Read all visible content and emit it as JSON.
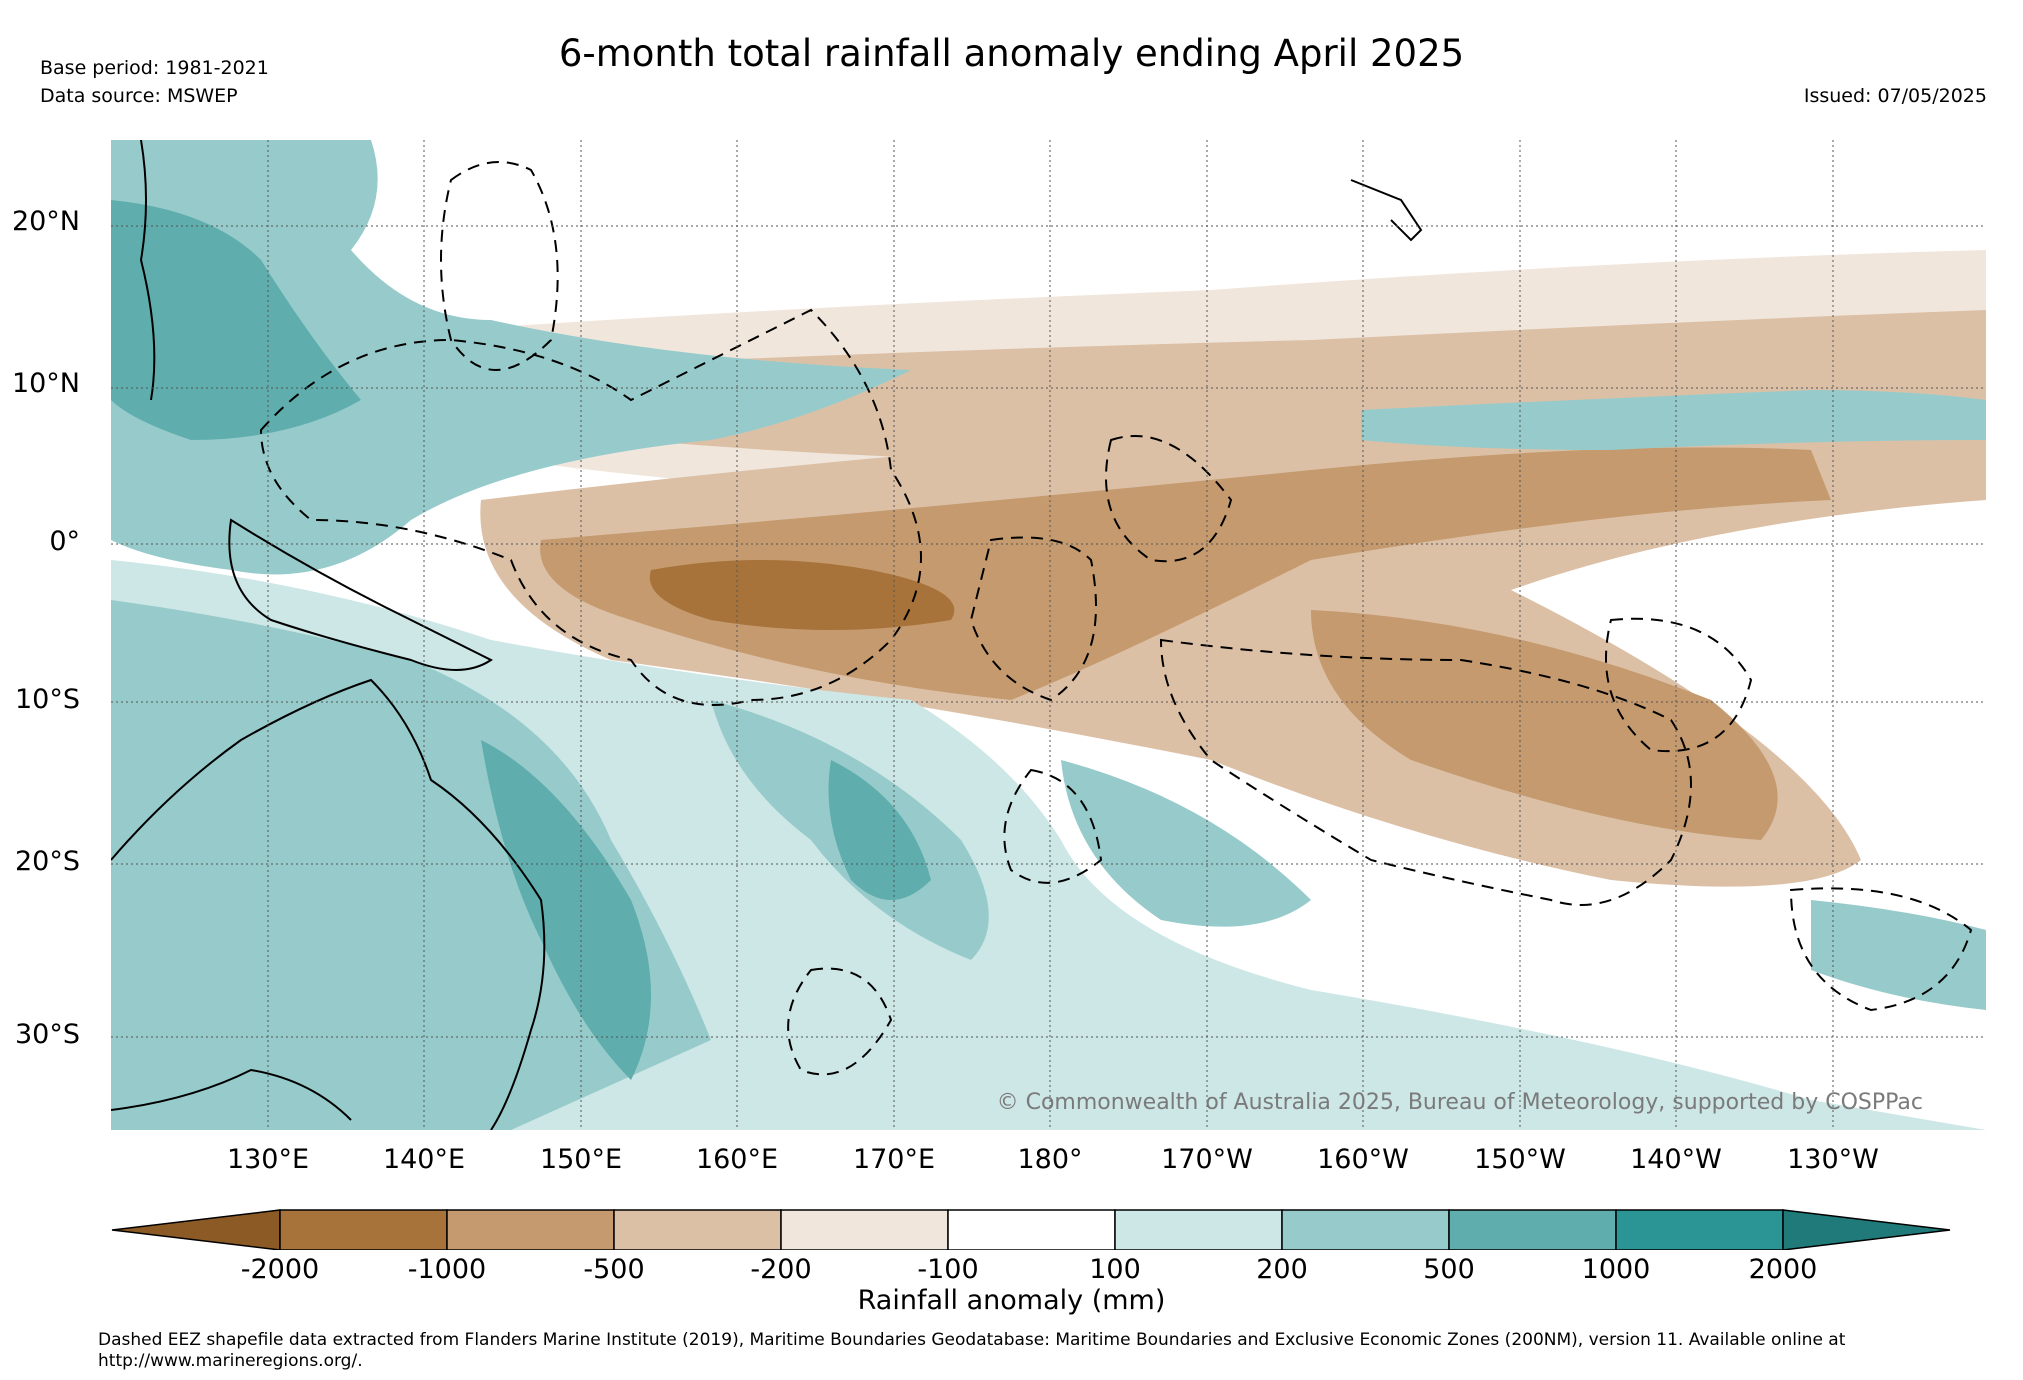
{
  "title": "6-month total rainfall anomaly ending April 2025",
  "base_period": "Base period: 1981-2021",
  "data_source": "Data source: MSWEP",
  "issued": "Issued: 07/05/2025",
  "copyright": "© Commonwealth of Australia 2025, Bureau of Meteorology, supported by COSPPac",
  "lat_labels": [
    "20°N",
    "10°N",
    "0°",
    "10°S",
    "20°S",
    "30°S"
  ],
  "lon_labels": [
    "130°E",
    "140°E",
    "150°E",
    "160°E",
    "170°E",
    "180°",
    "170°W",
    "160°W",
    "150°W",
    "140°W",
    "130°W"
  ],
  "colorbar": {
    "label": "Rainfall anomaly (mm)",
    "ticks": [
      "-2000",
      "-1000",
      "-500",
      "-200",
      "-100",
      "100",
      "200",
      "500",
      "1000",
      "2000"
    ],
    "colors": [
      "#8c5a24",
      "#a8733a",
      "#c49a6e",
      "#dcc0a6",
      "#f1e6dc",
      "#ffffff",
      "#cde6e6",
      "#97cbcb",
      "#5fadad",
      "#2b9595",
      "#207a7a"
    ]
  },
  "footnote": "Dashed EEZ shapefile data extracted from Flanders Marine Institute (2019), Maritime Boundaries Geodatabase: Maritime Boundaries and Exclusive Economic Zones (200NM), version 11. Available online at http://www.marineregions.org/."
}
